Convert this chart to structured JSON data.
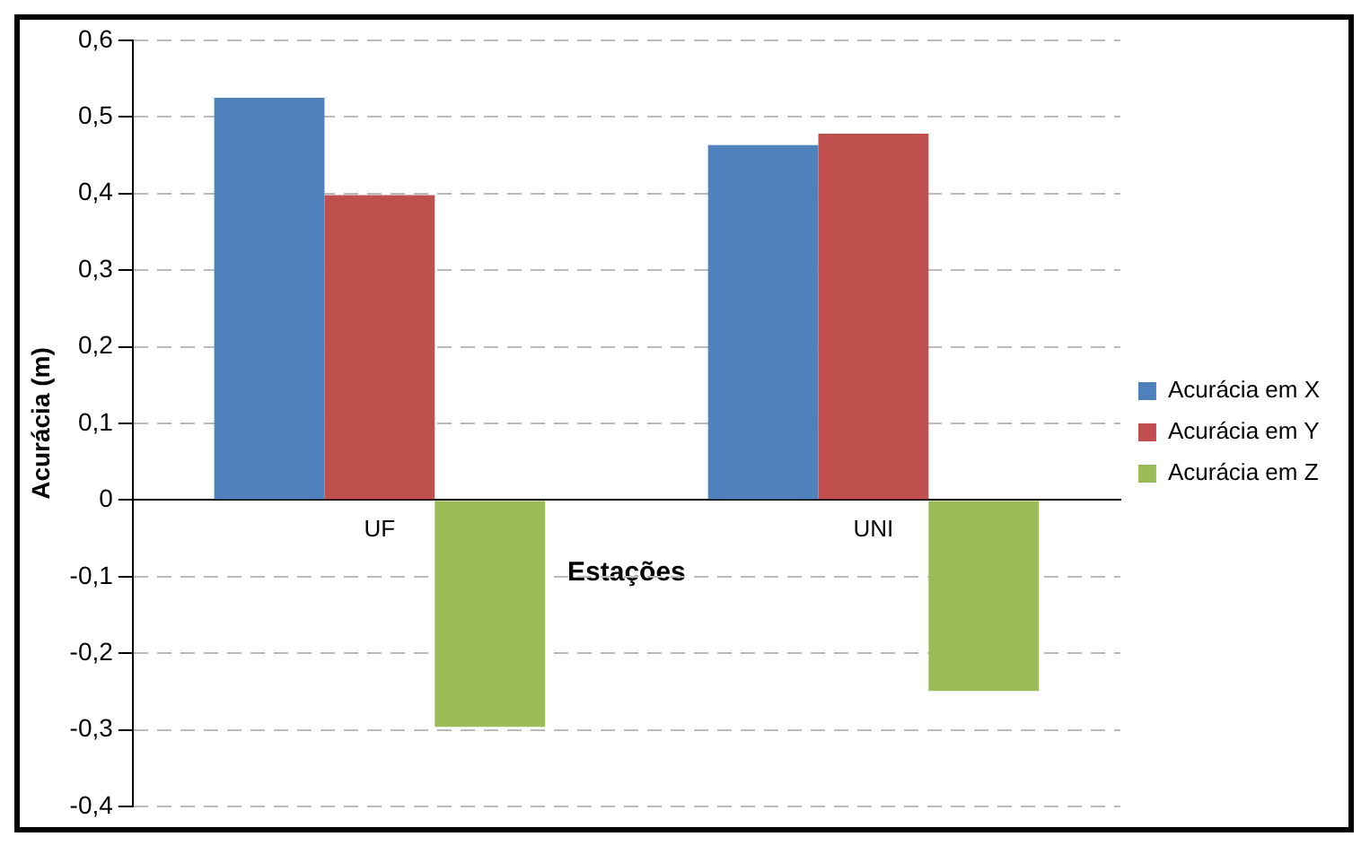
{
  "chart_data": {
    "type": "bar",
    "xlabel": "Estações",
    "ylabel": "Acurácia (m)",
    "categories": [
      "UF",
      "UNI"
    ],
    "series": [
      {
        "name": "Acurácia em X",
        "color": "#4f81bd",
        "values": [
          0.525,
          0.463
        ]
      },
      {
        "name": "Acurácia em Y",
        "color": "#c0504d",
        "values": [
          0.398,
          0.478
        ]
      },
      {
        "name": "Acurácia em Z",
        "color": "#9bbb59",
        "values": [
          -0.296,
          -0.249
        ]
      }
    ],
    "ylim": [
      -0.4,
      0.6
    ],
    "yticks": [
      {
        "value": -0.4,
        "label": "-0,4"
      },
      {
        "value": -0.3,
        "label": "-0,3"
      },
      {
        "value": -0.2,
        "label": "-0,2"
      },
      {
        "value": -0.1,
        "label": "-0,1"
      },
      {
        "value": 0,
        "label": "0"
      },
      {
        "value": 0.1,
        "label": "0,1"
      },
      {
        "value": 0.2,
        "label": "0,2"
      },
      {
        "value": 0.3,
        "label": "0,3"
      },
      {
        "value": 0.4,
        "label": "0,4"
      },
      {
        "value": 0.5,
        "label": "0,5"
      },
      {
        "value": 0.6,
        "label": "0,6"
      }
    ],
    "grid": "y",
    "legend": "right"
  }
}
